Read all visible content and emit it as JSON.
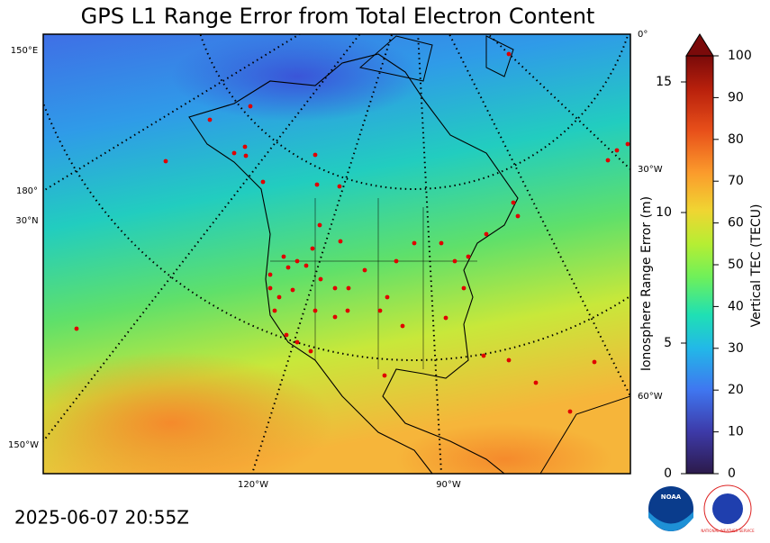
{
  "title": "GPS L1 Range Error from Total Electron Content",
  "timestamp": "2025-06-07 20:55Z",
  "map": {
    "graticule_labels": [
      "150°E",
      "180°",
      "30°N",
      "150°W",
      "120°W",
      "90°W",
      "0°",
      "30°W",
      "60°W"
    ]
  },
  "colorbar": {
    "label": "Vertical TEC (TECU)",
    "lim": [
      0,
      100
    ],
    "ticks": [
      0,
      10,
      20,
      30,
      40,
      50,
      60,
      70,
      80,
      90,
      100
    ],
    "secondary_label": "Ionosphere Range Error (m)",
    "secondary_lim": [
      0,
      16
    ],
    "secondary_ticks": [
      0,
      5,
      10,
      15
    ]
  },
  "logos": {
    "noaa": "NOAA",
    "nws": "NATIONAL WEATHER SERVICE"
  }
}
